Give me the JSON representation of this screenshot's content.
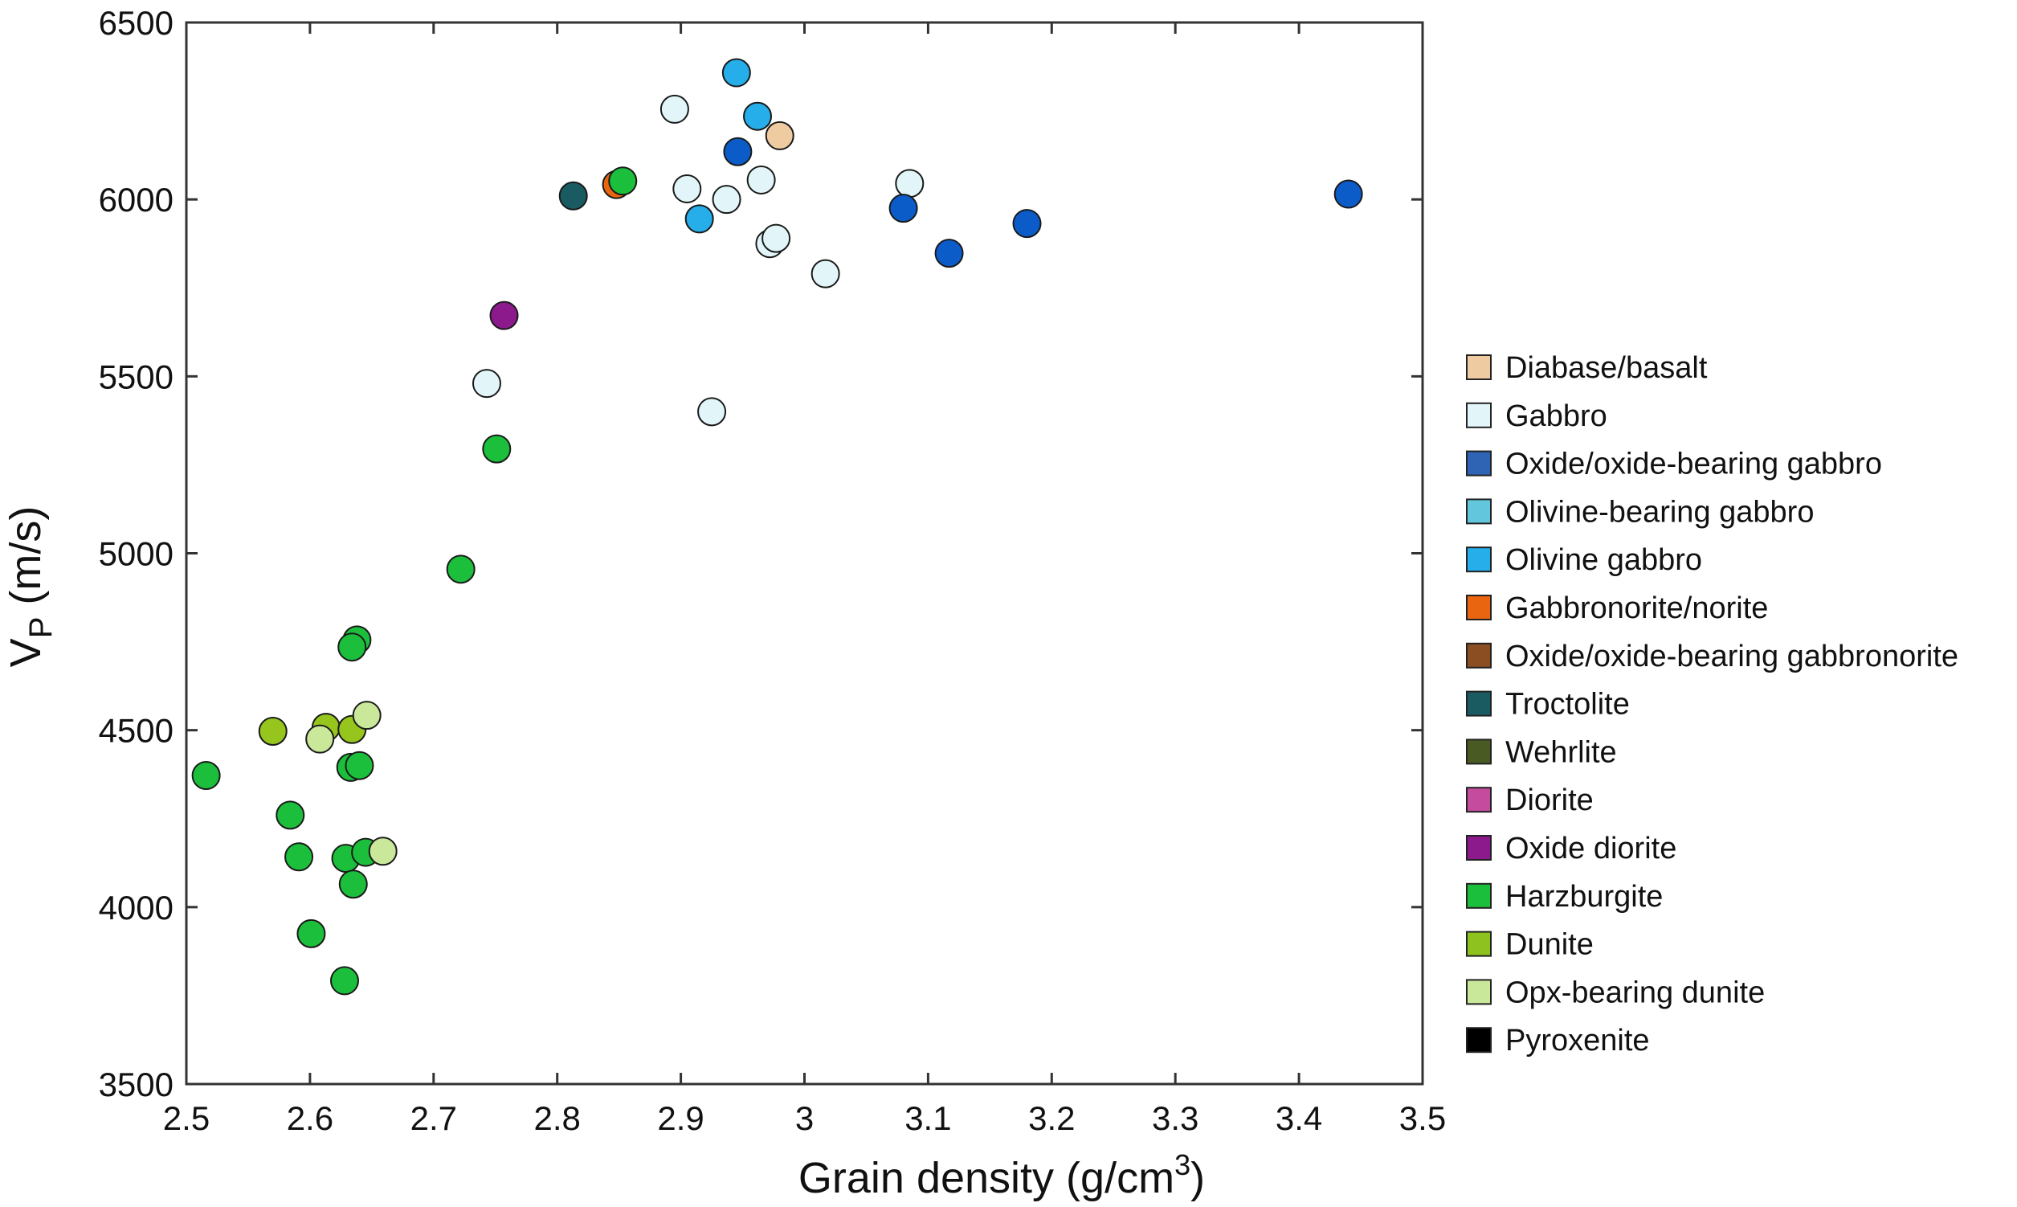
{
  "chart_data": {
    "type": "scatter",
    "title": "",
    "xlabel": "Grain density (g/cm",
    "xlabel_sup": "3",
    "xlabel_end": ")",
    "ylabel": "V",
    "ylabel_sub": "P",
    "ylabel_end": " (m/s)",
    "xlim": [
      2.5,
      3.5
    ],
    "ylim": [
      3500,
      6500
    ],
    "xticks": [
      "2.5",
      "2.6",
      "2.7",
      "2.8",
      "2.9",
      "3",
      "3.1",
      "3.2",
      "3.3",
      "3.4",
      "3.5"
    ],
    "yticks": [
      "3500",
      "4000",
      "4500",
      "5000",
      "5500",
      "6000",
      "6500"
    ],
    "grid": false,
    "legend_position": "right",
    "series": [
      {
        "name": "Diabase/basalt",
        "color": "#eecba0",
        "swatch": "#eecba0",
        "points": [
          [
            2.98,
            6180
          ]
        ]
      },
      {
        "name": "Gabbro",
        "color": "#e2f6f9",
        "swatch": "#e2f6f9",
        "points": [
          [
            2.895,
            6255
          ],
          [
            2.905,
            6030
          ],
          [
            2.937,
            6000
          ],
          [
            2.965,
            6055
          ],
          [
            2.972,
            5875
          ],
          [
            2.977,
            5890
          ],
          [
            3.017,
            5790
          ],
          [
            3.085,
            6045
          ],
          [
            2.743,
            5480
          ],
          [
            2.925,
            5400
          ]
        ]
      },
      {
        "name": "Oxide/oxide-bearing gabbro",
        "color": "#0b5cc8",
        "swatch": "#2f63b3",
        "points": [
          [
            2.946,
            6135
          ],
          [
            3.08,
            5975
          ],
          [
            3.117,
            5848
          ],
          [
            3.18,
            5932
          ],
          [
            3.44,
            6015
          ]
        ]
      },
      {
        "name": "Olivine-bearing gabbro",
        "color": "#62c7dc",
        "swatch": "#62c7dc",
        "points": []
      },
      {
        "name": "Olivine gabbro",
        "color": "#26aeea",
        "swatch": "#26aeea",
        "points": [
          [
            2.945,
            6358
          ],
          [
            2.962,
            6235
          ],
          [
            2.915,
            5945
          ]
        ]
      },
      {
        "name": "Gabbronorite/norite",
        "color": "#e9650f",
        "swatch": "#e9650f",
        "points": [
          [
            2.848,
            6042
          ]
        ]
      },
      {
        "name": "Oxide/oxide-bearing gabbronorite",
        "color": "#8b4d22",
        "swatch": "#8b4d22",
        "points": []
      },
      {
        "name": "Troctolite",
        "color": "#195b61",
        "swatch": "#195b61",
        "points": [
          [
            2.813,
            6010
          ]
        ]
      },
      {
        "name": "Wehrlite",
        "color": "#4a5a23",
        "swatch": "#4a5a23",
        "points": []
      },
      {
        "name": "Diorite",
        "color": "#c44b9e",
        "swatch": "#c44b9e",
        "points": []
      },
      {
        "name": "Oxide diorite",
        "color": "#8c1a8c",
        "swatch": "#8c1a8c",
        "points": [
          [
            2.757,
            5672
          ]
        ]
      },
      {
        "name": "Harzburgite",
        "color": "#1cbf3b",
        "swatch": "#1cbf3b",
        "points": [
          [
            2.853,
            6052
          ],
          [
            2.751,
            5295
          ],
          [
            2.722,
            4955
          ],
          [
            2.638,
            4755
          ],
          [
            2.634,
            4735
          ],
          [
            2.633,
            4395
          ],
          [
            2.64,
            4400
          ],
          [
            2.516,
            4372
          ],
          [
            2.584,
            4260
          ],
          [
            2.591,
            4142
          ],
          [
            2.629,
            4138
          ],
          [
            2.645,
            4155
          ],
          [
            2.635,
            4065
          ],
          [
            2.601,
            3925
          ],
          [
            2.628,
            3792
          ]
        ]
      },
      {
        "name": "Dunite",
        "color": "#96c51e",
        "swatch": "#8dc21f",
        "points": [
          [
            2.57,
            4497
          ],
          [
            2.613,
            4508
          ],
          [
            2.634,
            4502
          ]
        ]
      },
      {
        "name": "Opx-bearing dunite",
        "color": "#c9e89a",
        "swatch": "#c9e89a",
        "points": [
          [
            2.608,
            4475
          ],
          [
            2.646,
            4542
          ],
          [
            2.659,
            4158
          ]
        ]
      },
      {
        "name": "Pyroxenite",
        "color": "#000000",
        "swatch": "#000000",
        "points": []
      }
    ]
  }
}
